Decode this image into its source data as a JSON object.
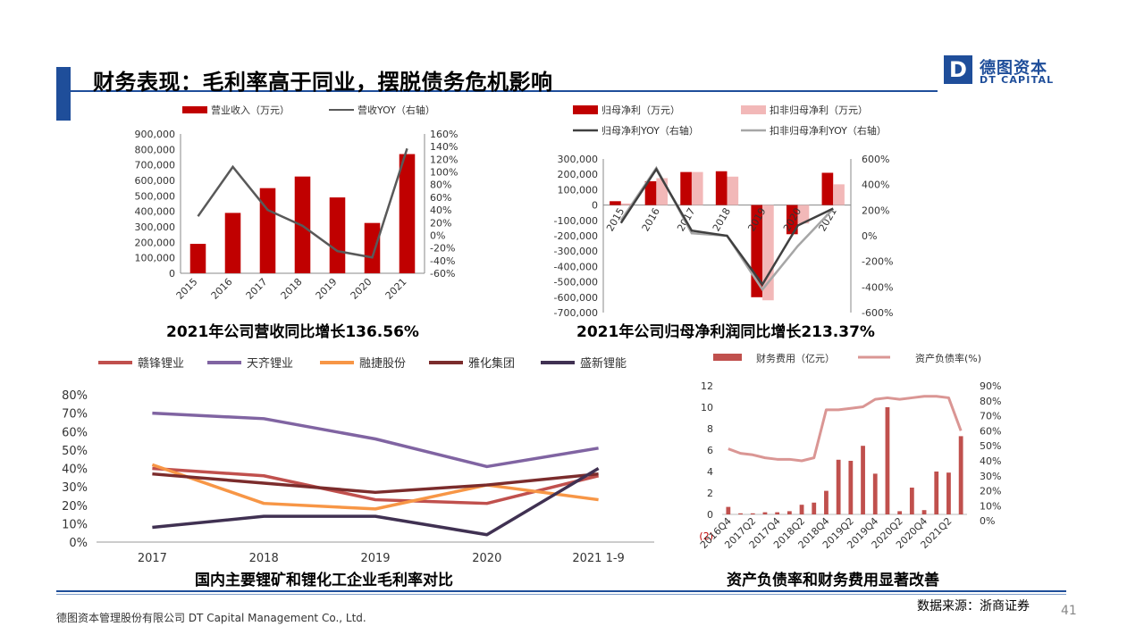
{
  "header": {
    "title": "财务表现：毛利率高于同业，摆脱债务危机影响",
    "logo_letter": "D",
    "logo_cn": "德图资本",
    "logo_en": "DT CAPITAL"
  },
  "captions": {
    "revenue": "2021年公司营收同比增长136.56%",
    "profit": "2021年公司归母净利润同比增长213.37%",
    "margin": "国内主要锂矿和锂化工企业毛利率对比",
    "debt": "资产负债率和财务费用显著改善"
  },
  "footer": {
    "source": "数据来源：浙商证券",
    "company": "德图资本管理股份有限公司  DT Capital Management Co., Ltd.",
    "page": "41"
  },
  "colors": {
    "brand": "#1f4e9a",
    "bar_red": "#c00000",
    "bar_pink": "#f2b8b8",
    "line_dark": "#404040",
    "line_gray": "#a6a6a6"
  },
  "chart_data": [
    {
      "id": "revenue",
      "type": "bar",
      "categories": [
        "2015",
        "2016",
        "2017",
        "2018",
        "2019",
        "2020",
        "2021"
      ],
      "series": [
        {
          "name": "营业收入（万元）",
          "type": "bar",
          "axis": "left",
          "color": "#c00000",
          "values": [
            190000,
            390000,
            550000,
            625000,
            490000,
            325000,
            770000
          ]
        },
        {
          "name": "营收YOY（右轴）",
          "type": "line",
          "axis": "right",
          "color": "#595959",
          "values": [
            30,
            108,
            40,
            15,
            -25,
            -35,
            137
          ]
        }
      ],
      "ylim": [
        0,
        900000
      ],
      "yticks": [
        "0",
        "100,000",
        "200,000",
        "300,000",
        "400,000",
        "500,000",
        "600,000",
        "700,000",
        "800,000",
        "900,000"
      ],
      "y2lim": [
        -60,
        160
      ],
      "y2ticks": [
        "-60%",
        "-40%",
        "-20%",
        "0%",
        "20%",
        "40%",
        "60%",
        "80%",
        "100%",
        "120%",
        "140%",
        "160%"
      ],
      "legend": "top"
    },
    {
      "id": "profit",
      "type": "bar",
      "categories": [
        "2015",
        "2016",
        "2017",
        "2018",
        "2019",
        "2020",
        "2021"
      ],
      "series": [
        {
          "name": "归母净利（万元）",
          "type": "bar",
          "axis": "left",
          "color": "#c00000",
          "values": [
            25000,
            155000,
            215000,
            220000,
            -600000,
            -190000,
            210000
          ]
        },
        {
          "name": "扣非归母净利（万元）",
          "type": "bar",
          "axis": "left",
          "color": "#f2b8b8",
          "values": [
            10000,
            175000,
            215000,
            185000,
            -620000,
            -120000,
            135000
          ]
        },
        {
          "name": "归母净利YOY（右轴）",
          "type": "line",
          "axis": "right",
          "color": "#404040",
          "values": [
            100,
            520,
            40,
            0,
            -380,
            80,
            213
          ]
        },
        {
          "name": "扣非归母净利YOY（右轴）",
          "type": "line",
          "axis": "right",
          "color": "#a6a6a6",
          "values": [
            120,
            530,
            20,
            0,
            -420,
            -80,
            210
          ]
        }
      ],
      "ylim": [
        -700000,
        300000
      ],
      "yticks": [
        "-700,000",
        "-600,000",
        "-500,000",
        "-400,000",
        "-300,000",
        "-200,000",
        "-100,000",
        "0",
        "100,000",
        "200,000",
        "300,000"
      ],
      "y2lim": [
        -600,
        600
      ],
      "y2ticks": [
        "-600%",
        "-400%",
        "-200%",
        "0%",
        "200%",
        "400%",
        "600%"
      ],
      "legend": "top"
    },
    {
      "id": "margin",
      "type": "line",
      "categories": [
        "2017",
        "2018",
        "2019",
        "2020",
        "2021 1-9"
      ],
      "series": [
        {
          "name": "赣锋锂业",
          "color": "#c0504d",
          "values": [
            40,
            36,
            23,
            21,
            36
          ]
        },
        {
          "name": "天齐锂业",
          "color": "#8064a2",
          "values": [
            70,
            67,
            56,
            41,
            51
          ]
        },
        {
          "name": "融捷股份",
          "color": "#f79646",
          "values": [
            42,
            21,
            18,
            31,
            23
          ]
        },
        {
          "name": "雅化集团",
          "color": "#7b2c2c",
          "values": [
            37,
            32,
            27,
            31,
            37
          ]
        },
        {
          "name": "盛新锂能",
          "color": "#403152",
          "values": [
            8,
            14,
            14,
            4,
            40
          ]
        }
      ],
      "ylim": [
        0,
        80
      ],
      "yticks": [
        "0%",
        "10%",
        "20%",
        "30%",
        "40%",
        "50%",
        "60%",
        "70%",
        "80%"
      ],
      "legend": "top"
    },
    {
      "id": "debt",
      "type": "bar",
      "categories": [
        "2016Q4",
        "2017Q1",
        "2017Q2",
        "2017Q3",
        "2017Q4",
        "2018Q1",
        "2018Q2",
        "2018Q3",
        "2018Q4",
        "2019Q1",
        "2019Q2",
        "2019Q3",
        "2019Q4",
        "2020Q1",
        "2020Q2",
        "2020Q3",
        "2020Q4",
        "2021Q1",
        "2021Q2",
        "2021Q3"
      ],
      "xticklabels": [
        "2016Q4",
        "2017Q2",
        "2017Q4",
        "2018Q2",
        "2018Q4",
        "2019Q2",
        "2019Q4",
        "2020Q2",
        "2020Q4",
        "2021Q2"
      ],
      "series": [
        {
          "name": "财务费用（亿元）",
          "type": "bar",
          "axis": "left",
          "color": "#c0504d",
          "values": [
            0.7,
            0.1,
            0.1,
            0.2,
            0.2,
            0.3,
            0.9,
            1.1,
            2.2,
            5.1,
            5.0,
            6.4,
            3.8,
            10.0,
            0.3,
            2.5,
            0.4,
            4.0,
            3.9,
            7.3
          ]
        },
        {
          "name": "资产负债率(%)",
          "type": "line",
          "axis": "right",
          "color": "#da9694",
          "values": [
            48,
            45,
            44,
            42,
            41,
            41,
            40,
            42,
            74,
            74,
            75,
            76,
            81,
            82,
            81,
            82,
            83,
            83,
            82,
            60
          ]
        }
      ],
      "ylim": [
        -2,
        12
      ],
      "yticks": [
        "(2)",
        "0",
        "2",
        "4",
        "6",
        "8",
        "10",
        "12"
      ],
      "y2lim": [
        -10,
        90
      ],
      "y2ticks": [
        "0%",
        "10%",
        "20%",
        "30%",
        "40%",
        "50%",
        "60%",
        "70%",
        "80%",
        "90%"
      ],
      "legend": "top"
    }
  ]
}
